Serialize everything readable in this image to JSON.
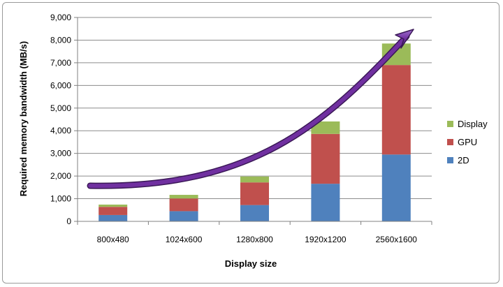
{
  "chart_data": {
    "type": "bar",
    "stacked": true,
    "categories": [
      "800x480",
      "1024x600",
      "1280x800",
      "1920x1200",
      "2560x1600"
    ],
    "series": [
      {
        "name": "2D",
        "color": "#4f81bd",
        "values": [
          280,
          450,
          720,
          1660,
          2950
        ]
      },
      {
        "name": "GPU",
        "color": "#c0504d",
        "values": [
          360,
          560,
          1000,
          2200,
          3950
        ]
      },
      {
        "name": "Display",
        "color": "#9bbb59",
        "values": [
          100,
          160,
          260,
          550,
          950
        ]
      }
    ],
    "xlabel": "Display size",
    "ylabel": "Required memory bandwidth (MB/s)",
    "ylim": [
      0,
      9000
    ],
    "yticks": [
      "0",
      "1,000",
      "2,000",
      "3,000",
      "4,000",
      "5,000",
      "6,000",
      "7,000",
      "8,000",
      "9,000"
    ],
    "grid": "horizontal",
    "legend_position": "right",
    "trend_arrow": {
      "color": "#7030a0"
    }
  }
}
